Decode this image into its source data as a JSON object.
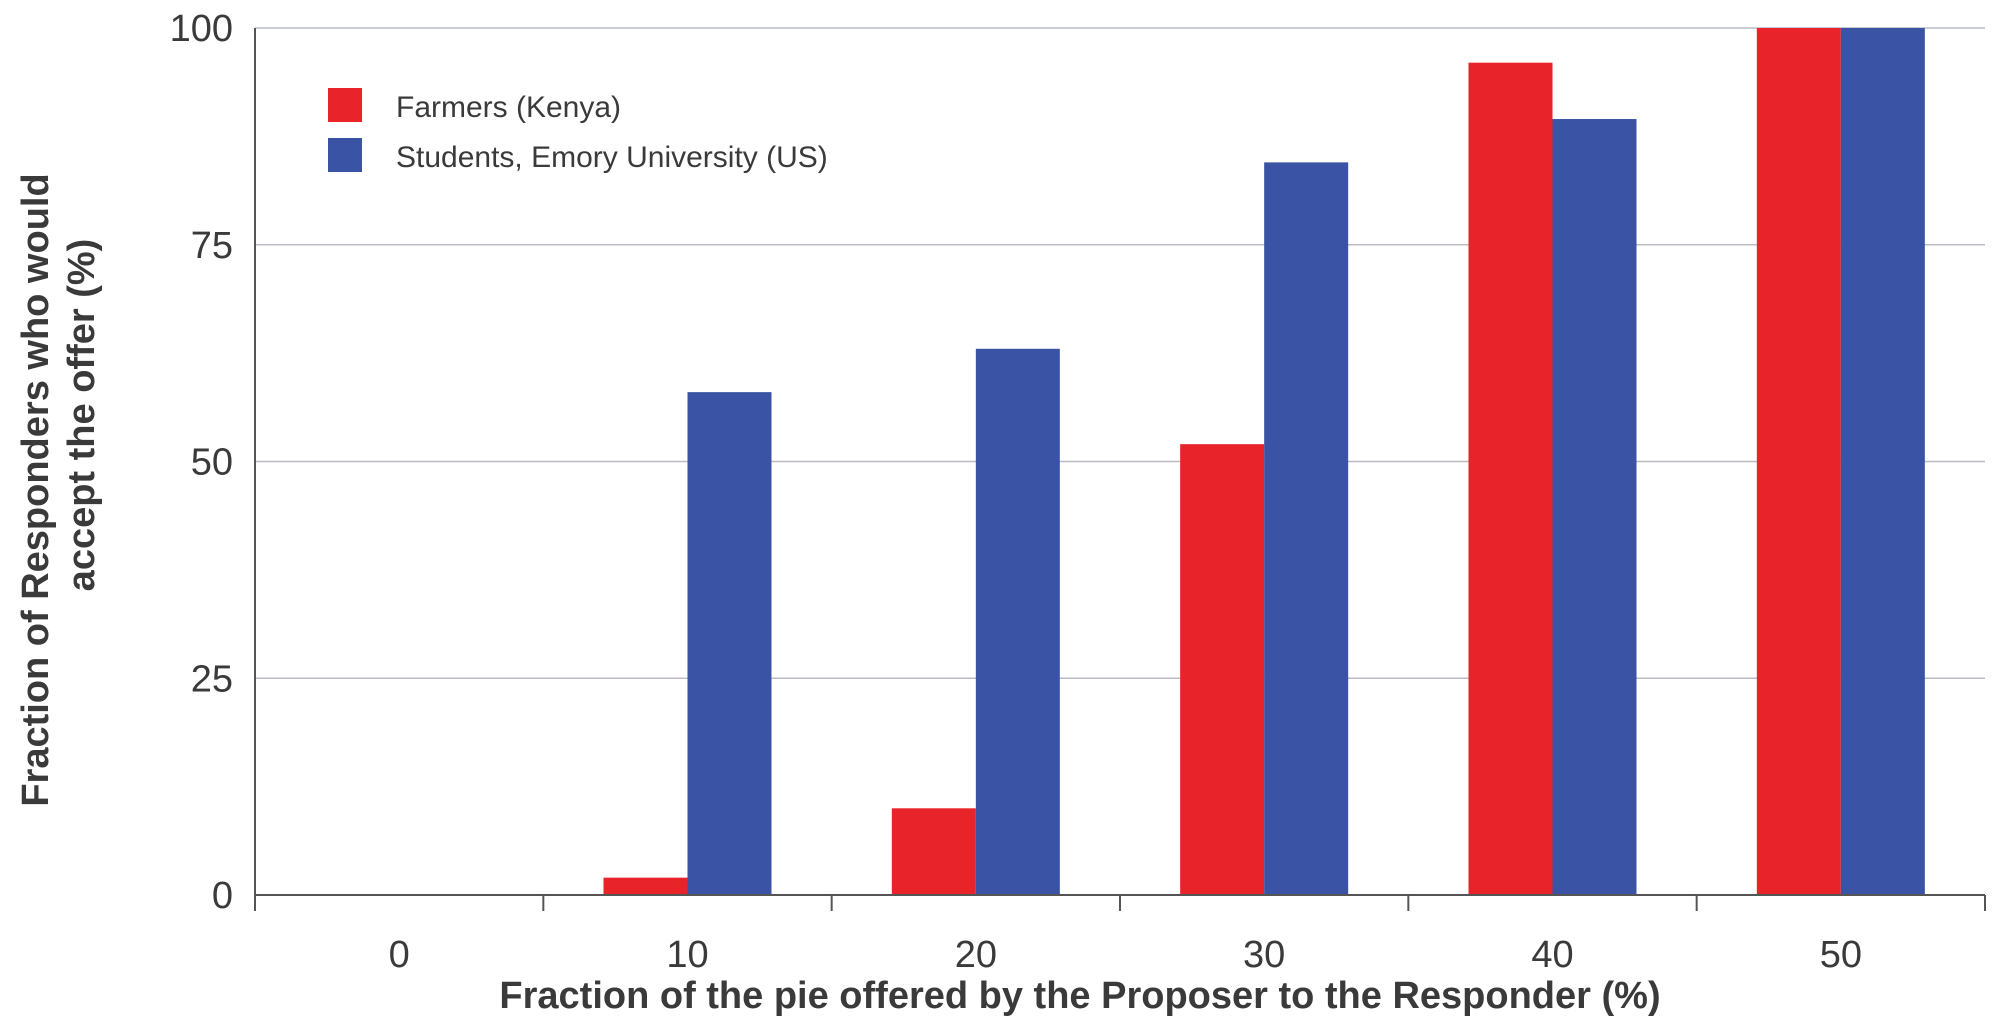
{
  "chart_data": {
    "type": "bar",
    "categories": [
      "0",
      "10",
      "20",
      "30",
      "40",
      "50"
    ],
    "series": [
      {
        "name": "Farmers (Kenya)",
        "color": "#e8232a",
        "values": [
          0,
          2,
          10,
          52,
          96,
          100
        ]
      },
      {
        "name": "Students, Emory University (US)",
        "color": "#3a53a4",
        "values": [
          0,
          58,
          63,
          84.5,
          89.5,
          100
        ]
      }
    ],
    "xlabel": "Fraction of the pie offered by the Proposer to the Responder (%)",
    "ylabel_lines": [
      "Fraction of Responders who would",
      "accept the offer (%)"
    ],
    "ylim": [
      0,
      100
    ],
    "yticks": [
      0,
      25,
      50,
      75,
      100
    ],
    "grid": true,
    "legend_position": "top-left"
  }
}
